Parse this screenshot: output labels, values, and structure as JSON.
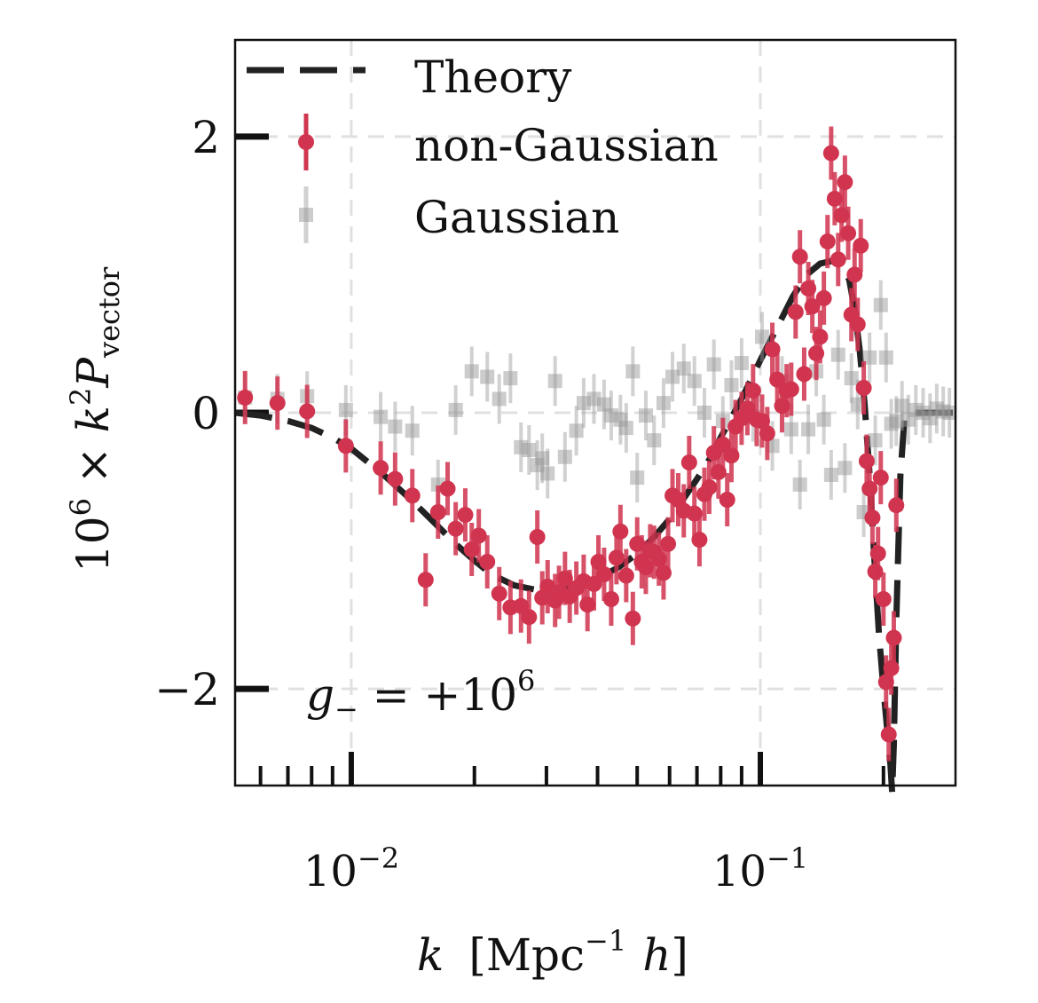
{
  "chart_data": {
    "type": "scatter",
    "x_scale": "log",
    "xlim": [
      0.0052,
      0.3
    ],
    "ylim": [
      -2.7,
      2.7
    ],
    "y_ticks": [
      -2,
      0,
      2
    ],
    "y_tick_labels": [
      "−2",
      "0",
      "2"
    ],
    "x_major_ticks": [
      0.01,
      0.1
    ],
    "x_tick_labels": [
      {
        "base": "10",
        "exp": "−2"
      },
      {
        "base": "10",
        "exp": "−1"
      }
    ],
    "grid": true,
    "legend_location": "upper-left",
    "ylabel": {
      "prefix": "10",
      "prefix_exp": "6",
      "times": " × ",
      "k": "k",
      "k_exp": "2",
      "P": "P",
      "sub": "vector"
    },
    "xlabel": {
      "k": "k",
      "open": "[Mpc",
      "exp": "−1",
      "h": "h",
      "close": "]"
    },
    "annotation": {
      "g": "g",
      "sub": "−",
      "eq": " = +10",
      "exp": "6"
    },
    "colors": {
      "theory": "#222222",
      "non_gaussian": "#d0344f",
      "gaussian": "#9a9a9a",
      "grid": "#e0e0e0"
    },
    "series": [
      {
        "name": "Theory",
        "style": "dashed-line",
        "x": [
          0.0052,
          0.006,
          0.007,
          0.008,
          0.009,
          0.01,
          0.012,
          0.014,
          0.016,
          0.018,
          0.02,
          0.022,
          0.025,
          0.028,
          0.03,
          0.032,
          0.035,
          0.04,
          0.045,
          0.05,
          0.055,
          0.06,
          0.065,
          0.07,
          0.075,
          0.08,
          0.09,
          0.1,
          0.11,
          0.12,
          0.13,
          0.14,
          0.15,
          0.16,
          0.165,
          0.17,
          0.175,
          0.18,
          0.185,
          0.19,
          0.195,
          0.2,
          0.205,
          0.208,
          0.21,
          0.212,
          0.215,
          0.22,
          0.225,
          0.23,
          0.24,
          0.26,
          0.3
        ],
        "y": [
          0.0,
          -0.02,
          -0.06,
          -0.11,
          -0.18,
          -0.26,
          -0.45,
          -0.63,
          -0.8,
          -0.95,
          -1.07,
          -1.17,
          -1.25,
          -1.28,
          -1.29,
          -1.28,
          -1.26,
          -1.2,
          -1.12,
          -1.02,
          -0.9,
          -0.77,
          -0.62,
          -0.48,
          -0.34,
          -0.18,
          0.1,
          0.38,
          0.62,
          0.84,
          1.0,
          1.08,
          1.1,
          1.06,
          0.96,
          0.75,
          0.45,
          0.05,
          -0.45,
          -1.05,
          -1.6,
          -2.0,
          -2.35,
          -2.55,
          -2.75,
          -2.4,
          -1.5,
          -0.45,
          -0.05,
          0.0,
          0.0,
          0.0,
          0.0
        ]
      },
      {
        "name": "non-Gaussian",
        "style": "points-errorbars",
        "x": [
          0.0055,
          0.0066,
          0.0078,
          0.0097,
          0.0118,
          0.0128,
          0.0141,
          0.0152,
          0.0163,
          0.0172,
          0.018,
          0.019,
          0.0197,
          0.0205,
          0.0215,
          0.023,
          0.0245,
          0.026,
          0.0272,
          0.0285,
          0.0293,
          0.0302,
          0.0315,
          0.0322,
          0.0333,
          0.0342,
          0.0355,
          0.037,
          0.0378,
          0.0392,
          0.0402,
          0.0415,
          0.0432,
          0.0445,
          0.0455,
          0.047,
          0.0488,
          0.05,
          0.0513,
          0.0525,
          0.0538,
          0.055,
          0.0565,
          0.058,
          0.0595,
          0.061,
          0.063,
          0.065,
          0.067,
          0.069,
          0.071,
          0.073,
          0.075,
          0.077,
          0.079,
          0.081,
          0.083,
          0.085,
          0.087,
          0.09,
          0.093,
          0.096,
          0.098,
          0.101,
          0.104,
          0.107,
          0.11,
          0.113,
          0.116,
          0.119,
          0.122,
          0.125,
          0.128,
          0.131,
          0.134,
          0.137,
          0.14,
          0.143,
          0.146,
          0.149,
          0.152,
          0.155,
          0.158,
          0.161,
          0.164,
          0.167,
          0.17,
          0.173,
          0.176,
          0.179,
          0.182,
          0.185,
          0.188,
          0.191,
          0.194,
          0.197,
          0.2,
          0.203,
          0.206,
          0.209,
          0.212,
          0.215
        ],
        "y": [
          0.11,
          0.07,
          0.01,
          -0.24,
          -0.4,
          -0.48,
          -0.6,
          -1.21,
          -0.72,
          -0.55,
          -0.84,
          -0.74,
          -0.99,
          -0.89,
          -1.08,
          -1.31,
          -1.41,
          -1.4,
          -1.48,
          -0.9,
          -1.34,
          -1.26,
          -1.36,
          -1.3,
          -1.2,
          -1.33,
          -1.27,
          -1.22,
          -1.39,
          -1.24,
          -1.08,
          -1.17,
          -1.35,
          -1.05,
          -0.86,
          -1.18,
          -1.49,
          -0.95,
          -1.08,
          -1.12,
          -1.0,
          -1.01,
          -1.06,
          -1.16,
          -0.95,
          -0.6,
          -0.63,
          -0.71,
          -0.36,
          -0.73,
          -0.92,
          -0.59,
          -0.54,
          -0.29,
          -0.43,
          -0.23,
          -0.63,
          -0.31,
          -0.1,
          -0.04,
          0.03,
          0.16,
          -0.05,
          -0.06,
          -0.15,
          0.46,
          0.24,
          0.05,
          0.16,
          0.17,
          0.73,
          1.13,
          0.28,
          0.9,
          0.77,
          0.43,
          0.55,
          0.83,
          1.24,
          1.88,
          1.55,
          1.11,
          1.43,
          1.67,
          1.3,
          0.71,
          1.0,
          0.64,
          1.21,
          0.18,
          -0.35,
          -0.55,
          -0.76,
          -1.15,
          -1.02,
          -0.47,
          -1.35,
          -1.95,
          -2.33,
          -1.85,
          -1.63,
          -0.67
        ]
      },
      {
        "name": "Gaussian",
        "style": "squares-errorbars",
        "x": [
          0.0055,
          0.0066,
          0.0078,
          0.0097,
          0.0118,
          0.0128,
          0.0141,
          0.0163,
          0.018,
          0.0197,
          0.0215,
          0.023,
          0.0245,
          0.026,
          0.0272,
          0.0285,
          0.0293,
          0.0302,
          0.0315,
          0.0333,
          0.0355,
          0.037,
          0.0392,
          0.0415,
          0.0432,
          0.0455,
          0.047,
          0.0488,
          0.05,
          0.0525,
          0.055,
          0.058,
          0.061,
          0.065,
          0.069,
          0.073,
          0.077,
          0.081,
          0.085,
          0.09,
          0.096,
          0.101,
          0.107,
          0.113,
          0.119,
          0.125,
          0.131,
          0.137,
          0.143,
          0.149,
          0.155,
          0.161,
          0.167,
          0.173,
          0.179,
          0.185,
          0.191,
          0.197,
          0.203,
          0.209,
          0.215,
          0.222,
          0.23,
          0.24,
          0.25,
          0.26,
          0.27,
          0.28,
          0.29
        ],
        "y": [
          0.11,
          0.1,
          0.12,
          0.02,
          -0.03,
          -0.1,
          -0.13,
          -0.52,
          0.02,
          0.3,
          0.26,
          0.1,
          0.25,
          -0.25,
          -0.27,
          -0.38,
          -0.33,
          -0.44,
          0.23,
          -0.32,
          -0.13,
          0.07,
          0.1,
          0.06,
          -0.02,
          -0.05,
          -0.11,
          0.3,
          -0.47,
          -0.02,
          -0.2,
          0.07,
          0.26,
          0.32,
          0.23,
          0.0,
          0.35,
          -0.06,
          0.2,
          0.36,
          -0.03,
          0.55,
          -0.24,
          0.23,
          -0.12,
          -0.52,
          -0.12,
          0.3,
          -0.05,
          -0.45,
          0.42,
          -0.4,
          0.25,
          0.06,
          -0.72,
          0.4,
          -0.2,
          0.78,
          0.4,
          -0.08,
          -0.06,
          0.05,
          -0.05,
          0.02,
          0.0,
          -0.04,
          0.03,
          0.01,
          0.0
        ]
      }
    ]
  }
}
